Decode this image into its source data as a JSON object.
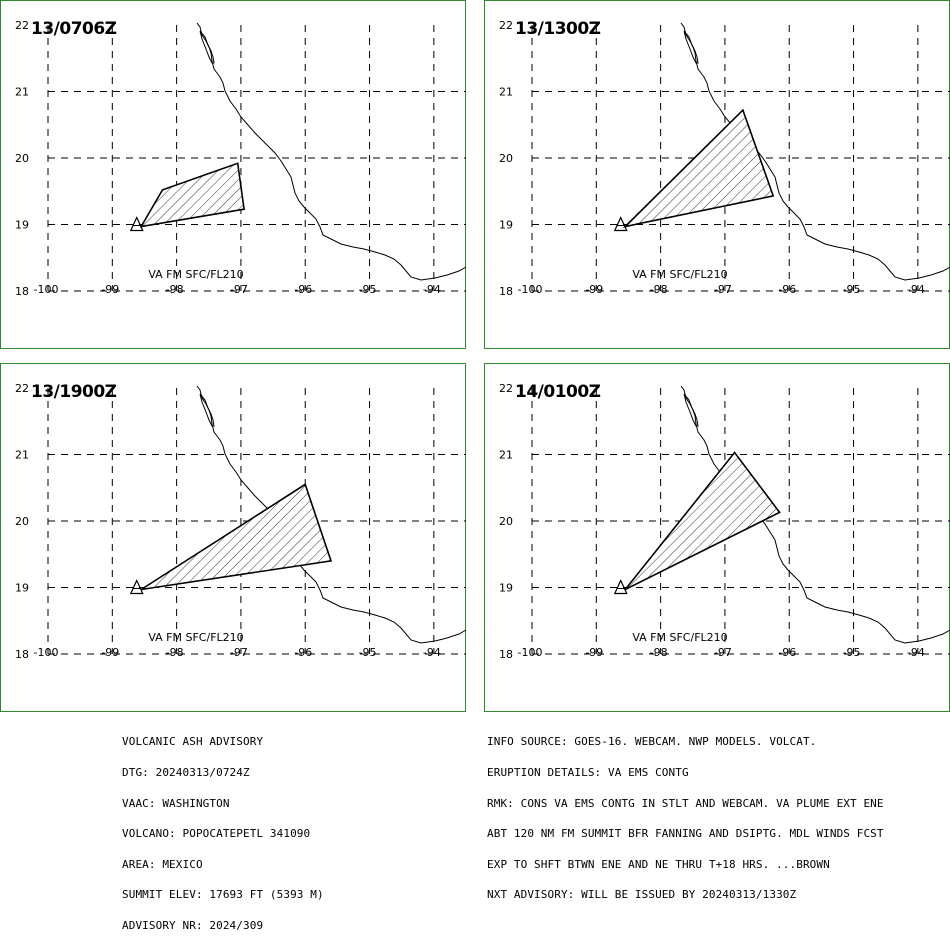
{
  "panels": [
    {
      "time": "13/0706Z",
      "label": "VA FM SFC/FL210",
      "polygon": [
        [
          -98.55,
          18.97
        ],
        [
          -98.22,
          19.52
        ],
        [
          -97.05,
          19.92
        ],
        [
          -96.95,
          19.23
        ],
        [
          -98.55,
          18.97
        ]
      ]
    },
    {
      "time": "13/1300Z",
      "label": "VA FM SFC/FL210",
      "polygon": [
        [
          -98.55,
          18.97
        ],
        [
          -96.72,
          20.72
        ],
        [
          -96.25,
          19.43
        ],
        [
          -98.55,
          18.97
        ]
      ]
    },
    {
      "time": "13/1900Z",
      "label": "VA FM SFC/FL210",
      "polygon": [
        [
          -98.55,
          18.97
        ],
        [
          -96.0,
          20.55
        ],
        [
          -95.6,
          19.4
        ],
        [
          -98.55,
          18.97
        ]
      ]
    },
    {
      "time": "14/0100Z",
      "label": "VA FM SFC/FL210",
      "polygon": [
        [
          -98.55,
          18.97
        ],
        [
          -96.85,
          21.03
        ],
        [
          -96.15,
          20.13
        ],
        [
          -98.55,
          18.97
        ]
      ]
    }
  ],
  "axes": {
    "lon_ticks": [
      "-100",
      "-99",
      "-98",
      "-97",
      "-96",
      "-95",
      "-94"
    ],
    "lat_ticks": [
      "18",
      "19",
      "20",
      "21",
      "22"
    ],
    "lon_range": [
      -100,
      -93.5
    ],
    "lat_range": [
      18,
      22
    ]
  },
  "volcano": {
    "lon": -98.62,
    "lat": 18.97
  },
  "advisory_left": [
    "VOLCANIC ASH ADVISORY",
    "DTG: 20240313/0724Z",
    "VAAC: WASHINGTON",
    "VOLCANO: POPOCATEPETL 341090",
    "AREA: MEXICO",
    "SUMMIT ELEV: 17693 FT (5393 M)",
    "ADVISORY NR: 2024/309"
  ],
  "advisory_right": [
    "INFO SOURCE: GOES-16. WEBCAM. NWP MODELS. VOLCAT.",
    "ERUPTION DETAILS: VA EMS CONTG",
    "RMK: CONS VA EMS CONTG IN STLT AND WEBCAM. VA PLUME EXT ENE",
    "ABT 120 NM FM SUMMIT BFR FANNING AND DSIPTG. MDL WINDS FCST",
    "EXP TO SHFT BTWN ENE AND NE THRU T+18 HRS. ...BROWN",
    "NXT ADVISORY: WILL BE ISSUED BY 20240313/1330Z"
  ],
  "colors": {
    "frame": "#2e8b2e",
    "grid": "#000000",
    "hatch": "#000000"
  }
}
